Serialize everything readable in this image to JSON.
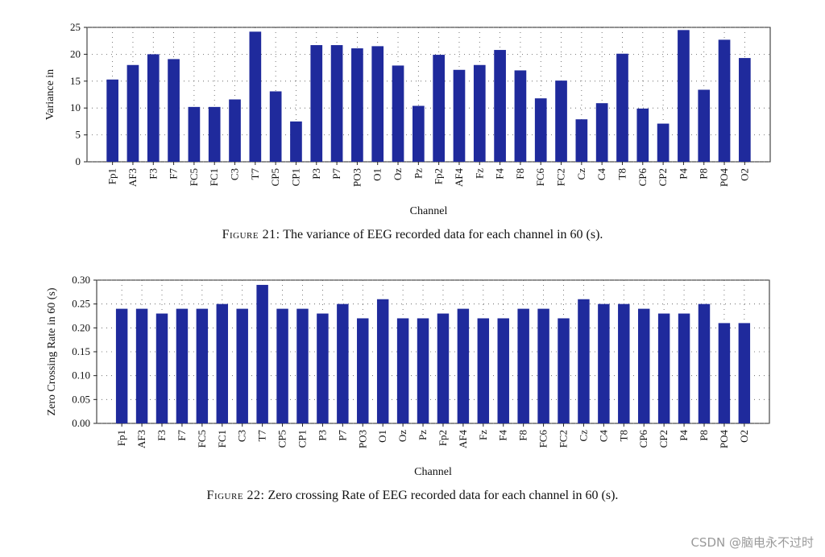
{
  "chart_data": [
    {
      "type": "bar",
      "title": "",
      "xlabel": "Channel",
      "ylabel": "Variance in",
      "ylim": [
        0,
        25
      ],
      "yticks": [
        0,
        5,
        10,
        15,
        20,
        25
      ],
      "ytick_labels": [
        "0",
        "5",
        "10",
        "15",
        "20",
        "25"
      ],
      "grid": "dotted",
      "bar_color": "#1f2a9c",
      "categories": [
        "Fp1",
        "AF3",
        "F3",
        "F7",
        "FC5",
        "FC1",
        "C3",
        "T7",
        "CP5",
        "CP1",
        "P3",
        "P7",
        "PO3",
        "O1",
        "Oz",
        "Pz",
        "Fp2",
        "AF4",
        "Fz",
        "F4",
        "F8",
        "FC6",
        "FC2",
        "Cz",
        "C4",
        "T8",
        "CP6",
        "CP2",
        "P4",
        "P8",
        "PO4",
        "O2"
      ],
      "values": [
        15.3,
        18.0,
        20.0,
        19.1,
        10.2,
        10.2,
        11.6,
        24.2,
        13.1,
        7.5,
        21.7,
        21.7,
        21.1,
        21.5,
        17.9,
        10.4,
        19.9,
        17.1,
        18.0,
        20.8,
        17.0,
        11.8,
        15.1,
        7.9,
        10.9,
        20.1,
        9.9,
        7.1,
        24.5,
        13.4,
        22.7,
        19.3
      ]
    },
    {
      "type": "bar",
      "title": "",
      "xlabel": "Channel",
      "ylabel": "Zero Crossing Rate in 60 (s)",
      "ylim": [
        0,
        0.3
      ],
      "yticks": [
        0,
        0.05,
        0.1,
        0.15,
        0.2,
        0.25,
        0.3
      ],
      "ytick_labels": [
        "0.00",
        "0.05",
        "0.10",
        "0.15",
        "0.20",
        "0.25",
        "0.30"
      ],
      "grid": "dotted",
      "bar_color": "#1f2a9c",
      "categories": [
        "Fp1",
        "AF3",
        "F3",
        "F7",
        "FC5",
        "FC1",
        "C3",
        "T7",
        "CP5",
        "CP1",
        "P3",
        "P7",
        "PO3",
        "O1",
        "Oz",
        "Pz",
        "Fp2",
        "AF4",
        "Fz",
        "F4",
        "F8",
        "FC6",
        "FC2",
        "Cz",
        "C4",
        "T8",
        "CP6",
        "CP2",
        "P4",
        "P8",
        "PO4",
        "O2"
      ],
      "values": [
        0.24,
        0.24,
        0.23,
        0.24,
        0.24,
        0.25,
        0.24,
        0.29,
        0.24,
        0.24,
        0.23,
        0.25,
        0.22,
        0.26,
        0.22,
        0.22,
        0.23,
        0.24,
        0.22,
        0.22,
        0.24,
        0.24,
        0.22,
        0.26,
        0.25,
        0.25,
        0.24,
        0.23,
        0.23,
        0.25,
        0.21,
        0.21
      ]
    }
  ],
  "captions": [
    {
      "label": "Figure 21:",
      "text": " The variance of EEG recorded data for each channel in 60 (s)."
    },
    {
      "label": "Figure 22:",
      "text": " Zero crossing Rate of EEG recorded data for each channel in 60 (s)."
    }
  ],
  "watermark": "CSDN @脑电永不过时"
}
